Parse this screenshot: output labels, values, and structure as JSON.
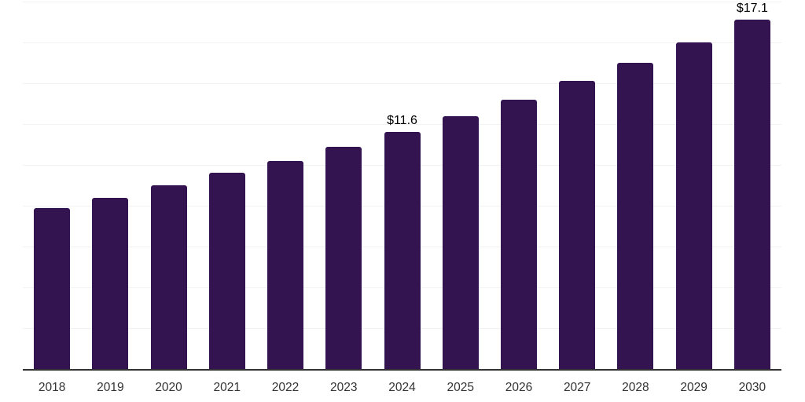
{
  "chart_data": {
    "type": "bar",
    "title": "",
    "xlabel": "",
    "ylabel": "",
    "categories": [
      "2018",
      "2019",
      "2020",
      "2021",
      "2022",
      "2023",
      "2024",
      "2025",
      "2026",
      "2027",
      "2028",
      "2029",
      "2030"
    ],
    "values": [
      7.9,
      8.4,
      9.0,
      9.6,
      10.2,
      10.9,
      11.6,
      12.4,
      13.2,
      14.1,
      15.0,
      16.0,
      17.1
    ],
    "data_labels": [
      null,
      null,
      null,
      null,
      null,
      null,
      "$11.6",
      null,
      null,
      null,
      null,
      null,
      "$17.1"
    ],
    "ylim": [
      0,
      18
    ],
    "gridline_step": 2,
    "grid": "horizontal",
    "y_tick_labels_visible": false,
    "legend": "none"
  },
  "style": {
    "bar_color": "#341450",
    "gridline_color": "#f2f2f2",
    "axis_color": "#333333",
    "tick_label_color": "#333333",
    "data_label_color": "#000000",
    "background_color": "#ffffff"
  }
}
